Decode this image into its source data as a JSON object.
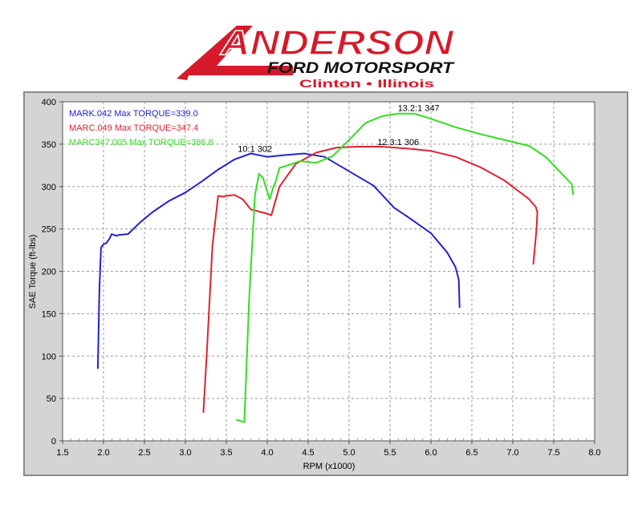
{
  "logo": {
    "brand": "ANDERSON",
    "line2": "FORD MOTORSPORT",
    "line3": "Clinton • Illinois",
    "color": "#d61a2a"
  },
  "chart_data": {
    "type": "line",
    "title": "",
    "xlabel": "RPM (x1000)",
    "ylabel": "SAE Torque (ft-lbs)",
    "xlim": [
      1.5,
      8.0
    ],
    "ylim": [
      0,
      400
    ],
    "xticks": [
      "1.5",
      "2.0",
      "2.5",
      "3.0",
      "3.5",
      "4.0",
      "4.5",
      "5.0",
      "5.5",
      "6.0",
      "6.5",
      "7.0",
      "7.5",
      "8.0"
    ],
    "yticks": [
      "0",
      "50",
      "100",
      "150",
      "200",
      "250",
      "300",
      "350",
      "400"
    ],
    "grid": true,
    "legend_position": "top-left",
    "series": [
      {
        "name": "MARK.042  Max TORQUE=339.0",
        "color": "#2222cc",
        "x": [
          1.93,
          1.95,
          1.97,
          2.0,
          2.03,
          2.07,
          2.1,
          2.15,
          2.2,
          2.3,
          2.45,
          2.6,
          2.8,
          3.0,
          3.2,
          3.4,
          3.6,
          3.8,
          4.0,
          4.2,
          4.45,
          4.7,
          5.0,
          5.3,
          5.55,
          5.75,
          6.0,
          6.2,
          6.3,
          6.34,
          6.35
        ],
        "y": [
          85,
          180,
          228,
          232,
          233,
          238,
          244,
          242,
          243,
          244,
          258,
          270,
          283,
          293,
          306,
          320,
          332,
          339,
          335,
          337,
          339,
          335,
          318,
          301,
          275,
          262,
          245,
          222,
          205,
          190,
          157
        ]
      },
      {
        "name": "MARC.049  Max TORQUE=347.4",
        "color": "#dd2233",
        "x": [
          3.22,
          3.26,
          3.33,
          3.4,
          3.46,
          3.5,
          3.6,
          3.7,
          3.8,
          4.0,
          4.05,
          4.15,
          4.35,
          4.6,
          4.85,
          5.1,
          5.4,
          5.7,
          6.0,
          6.3,
          6.6,
          6.9,
          7.2,
          7.28,
          7.3,
          7.29,
          7.25
        ],
        "y": [
          33,
          100,
          230,
          289,
          288,
          289,
          290,
          285,
          273,
          268,
          266,
          300,
          327,
          340,
          346,
          347,
          347,
          345,
          342,
          335,
          323,
          307,
          285,
          276,
          270,
          250,
          208
        ]
      },
      {
        "name": "MARC347.005  Max TORQUE=386.8",
        "color": "#33dd22",
        "x": [
          3.62,
          3.72,
          3.78,
          3.85,
          3.9,
          3.95,
          3.98,
          4.03,
          4.07,
          4.1,
          4.15,
          4.25,
          4.4,
          4.6,
          4.8,
          5.0,
          5.2,
          5.4,
          5.6,
          5.8,
          6.0,
          6.3,
          6.6,
          6.9,
          7.2,
          7.4,
          7.55,
          7.65,
          7.72,
          7.74
        ],
        "y": [
          25,
          22,
          170,
          290,
          315,
          310,
          300,
          285,
          298,
          305,
          322,
          325,
          330,
          328,
          336,
          355,
          375,
          383,
          386,
          386,
          380,
          370,
          362,
          355,
          348,
          335,
          320,
          310,
          303,
          290
        ]
      }
    ],
    "annotations": [
      {
        "text": "10:1 302",
        "x": 3.85,
        "y": 341
      },
      {
        "text": "12.3:1 306",
        "x": 5.6,
        "y": 349
      },
      {
        "text": "13.2:1 347",
        "x": 5.85,
        "y": 389
      }
    ]
  }
}
